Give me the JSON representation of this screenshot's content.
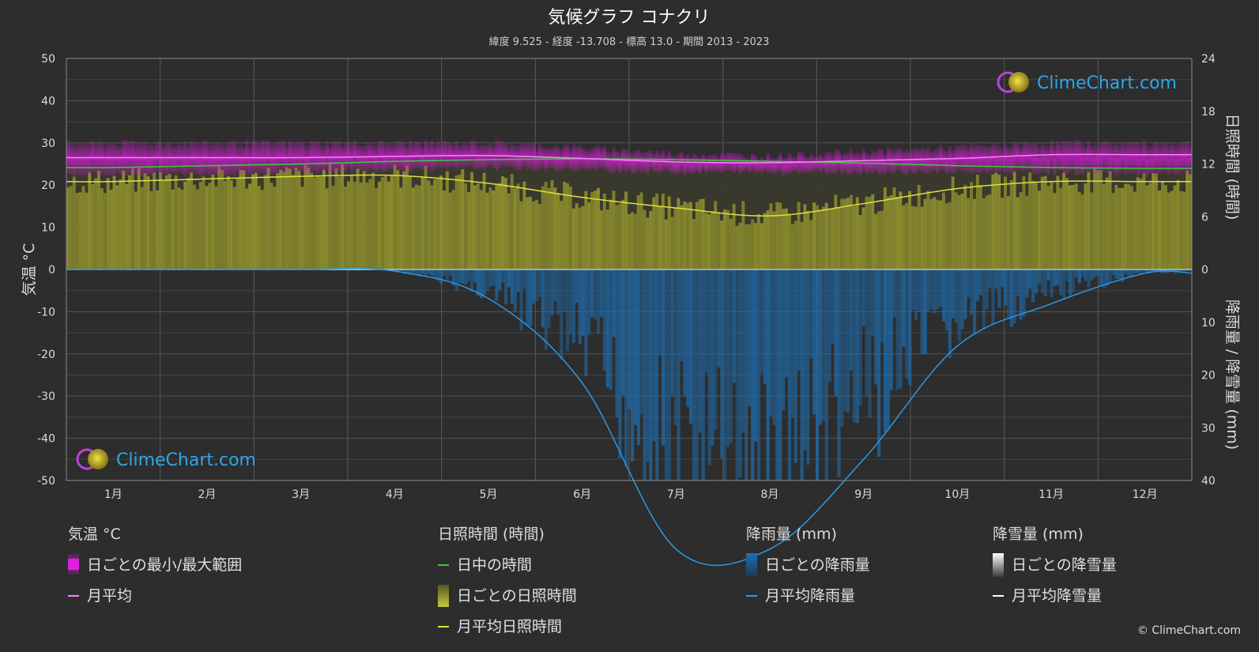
{
  "header": {
    "title": "気候グラフ コナクリ",
    "subtitle": "緯度 9.525 - 経度 -13.708 - 標高 13.0 - 期間 2013 - 2023"
  },
  "brand": {
    "name": "ClimeChart.com",
    "copyright": "© ClimeChart.com"
  },
  "colors": {
    "background": "#2d2d2d",
    "temp_range": "#d41fd4",
    "temp_mean": "#ff80ff",
    "daylight": "#3ccc3c",
    "sunshine_fill": "#8a8a2a",
    "sunshine_mean": "#e0e040",
    "rain_fill": "#1f6aa8",
    "rain_mean": "#2a9ae8",
    "snow": "#ffffff"
  },
  "chart_data": {
    "type": "line",
    "title": "気候グラフ コナクリ",
    "x": [
      "1月",
      "2月",
      "3月",
      "4月",
      "5月",
      "6月",
      "7月",
      "8月",
      "9月",
      "10月",
      "11月",
      "12月"
    ],
    "axes": {
      "left": {
        "label": "気温 °C",
        "ticks": [
          50,
          40,
          30,
          20,
          10,
          0,
          -10,
          -20,
          -30,
          -40,
          -50
        ],
        "range": [
          -50,
          50
        ]
      },
      "right_top": {
        "label": "日照時間 (時間)",
        "ticks": [
          24,
          18,
          12,
          6,
          0
        ],
        "range": [
          0,
          24
        ]
      },
      "right_bottom": {
        "label": "降雨量 / 降雪量 (mm)",
        "ticks": [
          0,
          10,
          20,
          30,
          40
        ],
        "range": [
          0,
          40
        ]
      }
    },
    "grid": true,
    "series": [
      {
        "name": "月平均",
        "axis": "temperature",
        "values": [
          26.5,
          26.5,
          26.5,
          26.8,
          27.0,
          26.3,
          25.5,
          25.3,
          25.8,
          26.3,
          27.2,
          27.2
        ]
      },
      {
        "name": "日ごとの最小/最大範囲",
        "axis": "temperature",
        "min": [
          22.5,
          22.5,
          23.0,
          23.5,
          24.0,
          23.5,
          23.0,
          23.0,
          23.0,
          23.0,
          23.0,
          22.5
        ],
        "max": [
          30.0,
          30.0,
          30.0,
          30.0,
          30.0,
          29.0,
          27.5,
          27.0,
          28.0,
          29.0,
          30.0,
          30.0
        ]
      },
      {
        "name": "日中の時間",
        "axis": "sunshine",
        "values": [
          11.6,
          11.8,
          12.0,
          12.3,
          12.5,
          12.6,
          12.5,
          12.3,
          12.1,
          11.8,
          11.6,
          11.5
        ]
      },
      {
        "name": "月平均日照時間",
        "axis": "sunshine",
        "values": [
          10.0,
          10.3,
          10.6,
          10.7,
          9.8,
          8.2,
          7.0,
          6.1,
          7.5,
          9.2,
          10.0,
          10.0
        ]
      },
      {
        "name": "月平均降雨量",
        "axis": "precipitation",
        "values": [
          0.0,
          0.0,
          0.0,
          0.3,
          5.5,
          21.5,
          53.0,
          53.0,
          36.0,
          14.5,
          6.5,
          0.7
        ]
      },
      {
        "name": "月平均降雪量",
        "axis": "precipitation",
        "values": [
          0,
          0,
          0,
          0,
          0,
          0,
          0,
          0,
          0,
          0,
          0,
          0
        ]
      }
    ]
  },
  "legend": {
    "temperature": {
      "heading": "気温 °C",
      "items": [
        "日ごとの最小/最大範囲",
        "月平均"
      ]
    },
    "sunshine": {
      "heading": "日照時間 (時間)",
      "items": [
        "日中の時間",
        "日ごとの日照時間",
        "月平均日照時間"
      ]
    },
    "rain": {
      "heading": "降雨量 (mm)",
      "items": [
        "日ごとの降雨量",
        "月平均降雨量"
      ]
    },
    "snow": {
      "heading": "降雪量 (mm)",
      "items": [
        "日ごとの降雪量",
        "月平均降雪量"
      ]
    }
  }
}
